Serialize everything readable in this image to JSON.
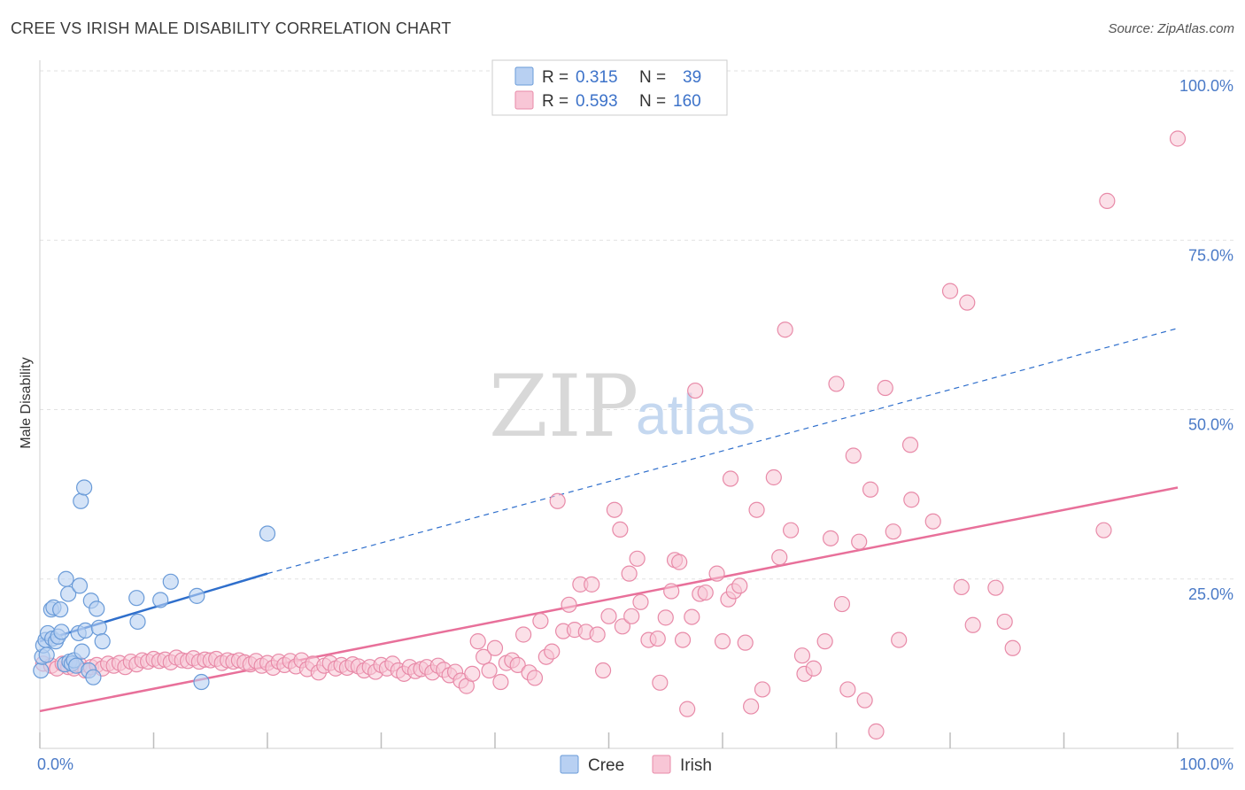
{
  "header": {
    "title": "CREE VS IRISH MALE DISABILITY CORRELATION CHART",
    "source": "Source: ZipAtlas.com"
  },
  "colors": {
    "cree_fill": "#b8d0f2",
    "cree_stroke": "#6a9bd8",
    "cree_line": "#2f6fcc",
    "irish_fill": "#f8c6d6",
    "irish_stroke": "#e88aa8",
    "irish_line": "#e8709a",
    "tick_text": "#4a7ac7"
  },
  "legend": {
    "rows": [
      {
        "r_label": "R =",
        "r_value": "0.315",
        "n_label": "N =",
        "n_value": "39"
      },
      {
        "r_label": "R =",
        "r_value": "0.593",
        "n_label": "N =",
        "n_value": "160"
      }
    ]
  },
  "bottom_legend": {
    "cree": "Cree",
    "irish": "Irish"
  },
  "watermark": {
    "zip": "ZIP",
    "atlas": "atlas"
  },
  "chart_data": {
    "type": "scatter",
    "title": "CREE VS IRISH MALE DISABILITY CORRELATION CHART",
    "xlabel": "",
    "ylabel": "Male Disability",
    "xlim": [
      0,
      100
    ],
    "ylim": [
      0,
      100
    ],
    "x_tick_labels": [
      "0.0%",
      "100.0%"
    ],
    "y_tick_labels": [
      "25.0%",
      "50.0%",
      "75.0%",
      "100.0%"
    ],
    "y_ticks": [
      25,
      50,
      75,
      100
    ],
    "grid": true,
    "legend_position": "top-center",
    "series": [
      {
        "name": "Cree",
        "trend": {
          "x_start": 0,
          "y_start": 15.8,
          "x_solid_end": 20,
          "y_solid_end": 25.8,
          "x_end": 100,
          "y_end": 62
        },
        "points": [
          [
            0.1,
            11.5
          ],
          [
            0.2,
            13.5
          ],
          [
            0.3,
            15.2
          ],
          [
            0.5,
            16.0
          ],
          [
            0.6,
            13.8
          ],
          [
            0.7,
            17.0
          ],
          [
            1.0,
            20.5
          ],
          [
            1.1,
            16.2
          ],
          [
            1.2,
            20.8
          ],
          [
            1.4,
            15.8
          ],
          [
            1.6,
            16.5
          ],
          [
            1.8,
            20.5
          ],
          [
            1.9,
            17.2
          ],
          [
            2.2,
            12.4
          ],
          [
            2.3,
            25.0
          ],
          [
            2.5,
            22.8
          ],
          [
            2.6,
            12.8
          ],
          [
            2.8,
            12.5
          ],
          [
            3.0,
            13.0
          ],
          [
            3.2,
            12.2
          ],
          [
            3.4,
            17.0
          ],
          [
            3.5,
            24.0
          ],
          [
            3.6,
            36.5
          ],
          [
            3.7,
            14.3
          ],
          [
            3.9,
            38.5
          ],
          [
            4.0,
            17.4
          ],
          [
            4.3,
            11.5
          ],
          [
            4.5,
            21.8
          ],
          [
            4.7,
            10.5
          ],
          [
            5.0,
            20.6
          ],
          [
            5.2,
            17.8
          ],
          [
            5.5,
            15.8
          ],
          [
            8.5,
            22.2
          ],
          [
            8.6,
            18.7
          ],
          [
            10.6,
            21.9
          ],
          [
            11.5,
            24.6
          ],
          [
            13.8,
            22.5
          ],
          [
            14.2,
            9.8
          ],
          [
            20.0,
            31.7
          ]
        ]
      },
      {
        "name": "Irish",
        "trend": {
          "x_start": 0,
          "y_start": 5.5,
          "x_end": 100,
          "y_end": 38.5
        },
        "points": [
          [
            0.3,
            12.5
          ],
          [
            1.0,
            12.2
          ],
          [
            1.5,
            11.8
          ],
          [
            2.0,
            12.5
          ],
          [
            2.5,
            12.0
          ],
          [
            3.0,
            11.8
          ],
          [
            3.5,
            12.3
          ],
          [
            4.0,
            11.5
          ],
          [
            4.5,
            12.0
          ],
          [
            5.0,
            12.3
          ],
          [
            5.5,
            11.8
          ],
          [
            6.0,
            12.5
          ],
          [
            6.5,
            12.2
          ],
          [
            7.0,
            12.6
          ],
          [
            7.5,
            12.0
          ],
          [
            8.0,
            12.8
          ],
          [
            8.5,
            12.4
          ],
          [
            9.0,
            13.0
          ],
          [
            9.5,
            12.8
          ],
          [
            10.0,
            13.2
          ],
          [
            10.5,
            12.9
          ],
          [
            11.0,
            13.1
          ],
          [
            11.5,
            12.7
          ],
          [
            12.0,
            13.4
          ],
          [
            12.5,
            13.0
          ],
          [
            13.0,
            12.9
          ],
          [
            13.5,
            13.3
          ],
          [
            14.0,
            12.8
          ],
          [
            14.5,
            13.1
          ],
          [
            15.0,
            13.0
          ],
          [
            15.5,
            13.2
          ],
          [
            16.0,
            12.6
          ],
          [
            16.5,
            13.0
          ],
          [
            17.0,
            12.8
          ],
          [
            17.5,
            13.0
          ],
          [
            18.0,
            12.7
          ],
          [
            18.5,
            12.4
          ],
          [
            19.0,
            12.9
          ],
          [
            19.5,
            12.2
          ],
          [
            20.0,
            12.6
          ],
          [
            20.5,
            11.9
          ],
          [
            21.0,
            12.8
          ],
          [
            21.5,
            12.3
          ],
          [
            22.0,
            12.9
          ],
          [
            22.5,
            12.1
          ],
          [
            23.0,
            13.0
          ],
          [
            23.5,
            11.7
          ],
          [
            24.0,
            12.5
          ],
          [
            24.5,
            11.2
          ],
          [
            25.0,
            12.2
          ],
          [
            25.5,
            12.6
          ],
          [
            26.0,
            11.8
          ],
          [
            26.5,
            12.3
          ],
          [
            27.0,
            11.9
          ],
          [
            27.5,
            12.4
          ],
          [
            28.0,
            12.1
          ],
          [
            28.5,
            11.5
          ],
          [
            29.0,
            12.0
          ],
          [
            29.5,
            11.3
          ],
          [
            30.0,
            12.3
          ],
          [
            30.5,
            11.8
          ],
          [
            31.0,
            12.5
          ],
          [
            31.5,
            11.5
          ],
          [
            32.0,
            11.0
          ],
          [
            32.5,
            12.0
          ],
          [
            33.0,
            11.4
          ],
          [
            33.5,
            11.7
          ],
          [
            34.0,
            12.0
          ],
          [
            34.5,
            11.2
          ],
          [
            35.0,
            12.2
          ],
          [
            35.5,
            11.6
          ],
          [
            36.0,
            10.8
          ],
          [
            36.5,
            11.3
          ],
          [
            37.0,
            10.0
          ],
          [
            37.5,
            9.2
          ],
          [
            38.0,
            11.0
          ],
          [
            38.5,
            15.8
          ],
          [
            39.0,
            13.5
          ],
          [
            39.5,
            11.5
          ],
          [
            40.0,
            14.8
          ],
          [
            40.5,
            9.8
          ],
          [
            41.0,
            12.6
          ],
          [
            41.5,
            13.0
          ],
          [
            42.0,
            12.3
          ],
          [
            42.5,
            16.8
          ],
          [
            43.0,
            11.2
          ],
          [
            43.5,
            10.4
          ],
          [
            44.0,
            18.8
          ],
          [
            44.5,
            13.5
          ],
          [
            45.0,
            14.3
          ],
          [
            45.5,
            36.5
          ],
          [
            46.0,
            17.3
          ],
          [
            46.5,
            21.2
          ],
          [
            47.0,
            17.5
          ],
          [
            47.5,
            24.2
          ],
          [
            48.0,
            17.2
          ],
          [
            48.5,
            24.2
          ],
          [
            49.0,
            16.8
          ],
          [
            49.5,
            11.5
          ],
          [
            50.0,
            19.5
          ],
          [
            50.5,
            35.2
          ],
          [
            51.0,
            32.3
          ],
          [
            51.2,
            18.0
          ],
          [
            51.8,
            25.8
          ],
          [
            52.0,
            19.5
          ],
          [
            52.5,
            28.0
          ],
          [
            52.8,
            21.6
          ],
          [
            53.5,
            16.0
          ],
          [
            54.3,
            16.2
          ],
          [
            54.5,
            9.7
          ],
          [
            55.0,
            19.3
          ],
          [
            55.5,
            23.2
          ],
          [
            55.8,
            27.8
          ],
          [
            56.2,
            27.5
          ],
          [
            56.5,
            16.0
          ],
          [
            56.9,
            5.8
          ],
          [
            57.3,
            19.4
          ],
          [
            57.6,
            52.8
          ],
          [
            58.0,
            22.8
          ],
          [
            58.5,
            23.0
          ],
          [
            59.5,
            25.8
          ],
          [
            60.0,
            15.8
          ],
          [
            60.5,
            22.0
          ],
          [
            60.7,
            39.8
          ],
          [
            61.0,
            23.2
          ],
          [
            61.5,
            24.0
          ],
          [
            62.0,
            15.6
          ],
          [
            62.5,
            6.2
          ],
          [
            63.0,
            35.2
          ],
          [
            63.5,
            8.7
          ],
          [
            64.5,
            40.0
          ],
          [
            65.0,
            28.2
          ],
          [
            65.5,
            61.8
          ],
          [
            66.0,
            32.2
          ],
          [
            67.0,
            13.7
          ],
          [
            67.2,
            11.0
          ],
          [
            68.0,
            11.8
          ],
          [
            69.0,
            15.8
          ],
          [
            69.5,
            31.0
          ],
          [
            70.0,
            53.8
          ],
          [
            70.5,
            21.3
          ],
          [
            71.0,
            8.7
          ],
          [
            71.5,
            43.2
          ],
          [
            72.0,
            30.5
          ],
          [
            72.5,
            7.1
          ],
          [
            73.0,
            38.2
          ],
          [
            73.5,
            2.5
          ],
          [
            74.3,
            53.2
          ],
          [
            75.0,
            32.0
          ],
          [
            75.5,
            16.0
          ],
          [
            76.5,
            44.8
          ],
          [
            76.6,
            36.7
          ],
          [
            78.5,
            33.5
          ],
          [
            80.0,
            67.5
          ],
          [
            81.0,
            23.8
          ],
          [
            81.5,
            65.8
          ],
          [
            82.0,
            18.2
          ],
          [
            84.0,
            23.7
          ],
          [
            84.8,
            18.7
          ],
          [
            85.5,
            14.8
          ],
          [
            93.5,
            32.2
          ],
          [
            93.8,
            80.8
          ],
          [
            100.0,
            90.0
          ]
        ]
      }
    ]
  }
}
